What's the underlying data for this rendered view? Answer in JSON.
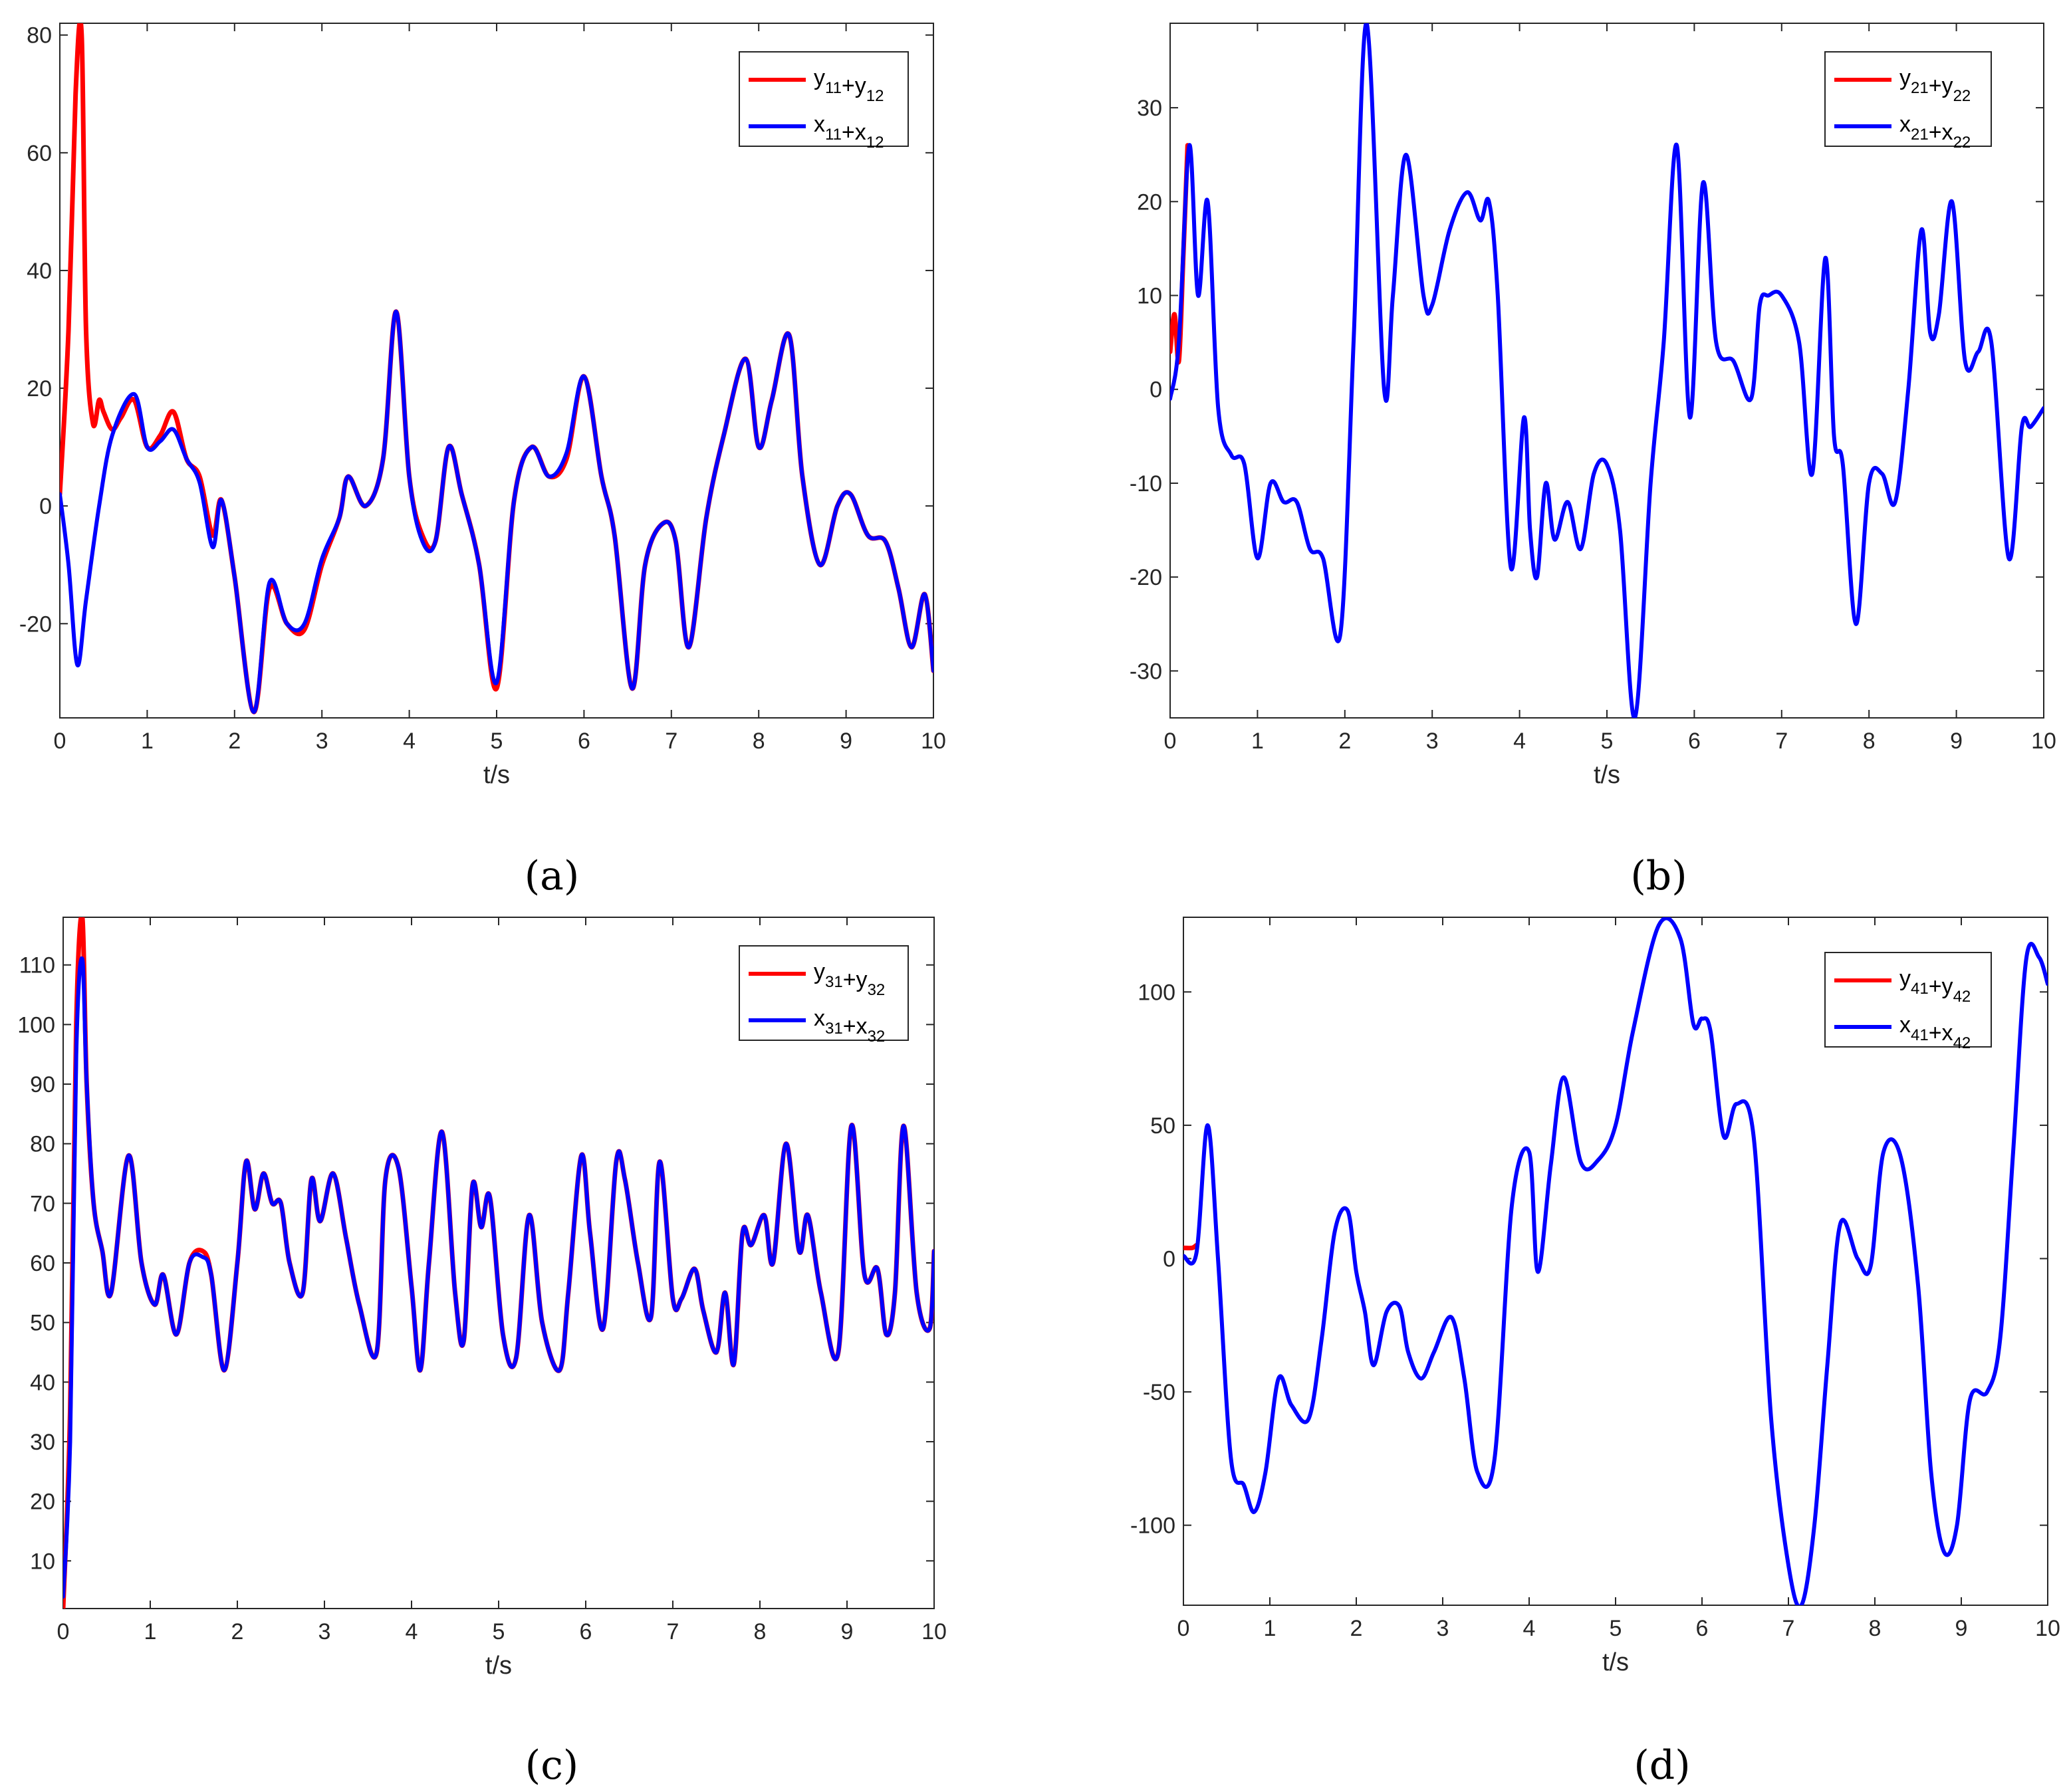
{
  "chart_data": [
    {
      "type": "line",
      "panel_label": "(a)",
      "xlabel": "t/s",
      "ylabel": "",
      "xlim": [
        0,
        10
      ],
      "ylim": [
        -36,
        82
      ],
      "xticks": [
        0,
        1,
        2,
        3,
        4,
        5,
        6,
        7,
        8,
        9,
        10
      ],
      "yticks": [
        -20,
        0,
        20,
        40,
        60,
        80
      ],
      "legend_position": "top-right",
      "series": [
        {
          "name": "y11+y12",
          "label_base": [
            "y",
            "+y"
          ],
          "label_sub": [
            "11",
            "12"
          ],
          "color": "#ff0000",
          "x": [
            0,
            0.1,
            0.18,
            0.25,
            0.3,
            0.38,
            0.45,
            0.5,
            0.6,
            0.7,
            0.85,
            1.0,
            1.15,
            1.3,
            1.45,
            1.6,
            1.75,
            1.85,
            2.0,
            2.22,
            2.4,
            2.6,
            2.8,
            3.0,
            3.2,
            3.3,
            3.5,
            3.7,
            3.85,
            4.0,
            4.15,
            4.3,
            4.45,
            4.6,
            4.8,
            5.0,
            5.2,
            5.4,
            5.6,
            5.8,
            6.0,
            6.2,
            6.35,
            6.55,
            6.7,
            6.9,
            7.05,
            7.2,
            7.4,
            7.6,
            7.85,
            8.0,
            8.15,
            8.35,
            8.5,
            8.7,
            8.9,
            9.05,
            9.25,
            9.45,
            9.6,
            9.75,
            9.9,
            10.0
          ],
          "y": [
            2,
            30,
            70,
            80,
            30,
            14,
            18,
            16,
            13,
            15,
            18,
            10,
            12,
            16,
            8,
            5,
            -5,
            1,
            -12,
            -35,
            -14,
            -20,
            -21,
            -10,
            -2,
            5,
            0,
            8,
            33,
            5,
            -5,
            -6,
            10,
            2,
            -10,
            -31,
            1,
            10,
            5,
            8,
            22,
            5,
            -5,
            -31,
            -10,
            -3,
            -6,
            -24,
            -2,
            12,
            25,
            10,
            18,
            29,
            5,
            -10,
            0,
            2,
            -5,
            -6,
            -14,
            -24,
            -15,
            -28
          ]
        },
        {
          "name": "x11+x12",
          "label_base": [
            "x",
            "+x"
          ],
          "label_sub": [
            "11",
            "12"
          ],
          "color": "#0000ff",
          "x": [
            0,
            0.1,
            0.2,
            0.3,
            0.45,
            0.6,
            0.85,
            1.0,
            1.15,
            1.3,
            1.45,
            1.6,
            1.75,
            1.85,
            2.0,
            2.22,
            2.4,
            2.6,
            2.8,
            3.0,
            3.2,
            3.3,
            3.5,
            3.7,
            3.85,
            4.0,
            4.15,
            4.3,
            4.45,
            4.6,
            4.8,
            5.0,
            5.2,
            5.4,
            5.6,
            5.8,
            6.0,
            6.2,
            6.35,
            6.55,
            6.7,
            6.9,
            7.05,
            7.2,
            7.4,
            7.6,
            7.85,
            8.0,
            8.15,
            8.35,
            8.5,
            8.7,
            8.9,
            9.05,
            9.25,
            9.45,
            9.6,
            9.75,
            9.9,
            10.0
          ],
          "y": [
            2,
            -10,
            -27,
            -16,
            0,
            12,
            19,
            10,
            11,
            13,
            8,
            4,
            -7,
            1,
            -12,
            -35,
            -13,
            -20,
            -20,
            -9,
            -2,
            5,
            0,
            8,
            33,
            5,
            -6,
            -6,
            10,
            2,
            -10,
            -30,
            1,
            10,
            5,
            9,
            22,
            5,
            -5,
            -31,
            -10,
            -3,
            -6,
            -24,
            -2,
            12,
            25,
            10,
            18,
            29,
            5,
            -10,
            0,
            2,
            -5,
            -6,
            -14,
            -24,
            -15,
            -28
          ]
        }
      ]
    },
    {
      "type": "line",
      "panel_label": "(b)",
      "xlabel": "t/s",
      "ylabel": "",
      "xlim": [
        0,
        10
      ],
      "ylim": [
        -35,
        39
      ],
      "xticks": [
        0,
        1,
        2,
        3,
        4,
        5,
        6,
        7,
        8,
        9,
        10
      ],
      "yticks": [
        -30,
        -20,
        -10,
        0,
        10,
        20,
        30
      ],
      "legend_position": "top-right",
      "series": [
        {
          "name": "y21+y22",
          "label_base": [
            "y",
            "+y"
          ],
          "label_sub": [
            "21",
            "22"
          ],
          "color": "#ff0000",
          "x": [
            0,
            0.05,
            0.1,
            0.15,
            0.2
          ],
          "y": [
            4,
            8,
            3,
            14,
            26
          ]
        },
        {
          "name": "x21+x22",
          "label_base": [
            "x",
            "+x"
          ],
          "label_sub": [
            "21",
            "22"
          ],
          "color": "#0000ff",
          "x": [
            0,
            0.1,
            0.22,
            0.32,
            0.43,
            0.55,
            0.7,
            0.85,
            1.0,
            1.15,
            1.3,
            1.45,
            1.6,
            1.75,
            1.95,
            2.1,
            2.25,
            2.45,
            2.55,
            2.7,
            2.9,
            3.0,
            3.2,
            3.4,
            3.55,
            3.65,
            3.75,
            3.9,
            4.05,
            4.12,
            4.2,
            4.3,
            4.4,
            4.55,
            4.7,
            4.85,
            5.0,
            5.15,
            5.32,
            5.5,
            5.65,
            5.8,
            5.95,
            6.1,
            6.25,
            6.45,
            6.65,
            6.75,
            6.85,
            7.0,
            7.2,
            7.35,
            7.5,
            7.6,
            7.7,
            7.85,
            8.0,
            8.15,
            8.3,
            8.45,
            8.6,
            8.7,
            8.8,
            8.95,
            9.1,
            9.25,
            9.4,
            9.6,
            9.75,
            9.85,
            10.0
          ],
          "y": [
            -1,
            5,
            26,
            10,
            20,
            -2,
            -7,
            -8,
            -18,
            -10,
            -12,
            -12,
            -17,
            -18,
            -26,
            5,
            39,
            0,
            10,
            25,
            10,
            9,
            17,
            21,
            18,
            20,
            10,
            -19,
            -3,
            -15,
            -20,
            -10,
            -16,
            -12,
            -17,
            -9,
            -8,
            -15,
            -35,
            -10,
            5,
            26,
            -3,
            22,
            5,
            3,
            -1,
            9,
            10,
            10,
            5,
            -9,
            14,
            -5,
            -8,
            -25,
            -10,
            -9,
            -12,
            0,
            17,
            6,
            8,
            20,
            3,
            4,
            5,
            -18,
            -4,
            -4,
            -2
          ]
        }
      ]
    },
    {
      "type": "line",
      "panel_label": "(c)",
      "xlabel": "t/s",
      "ylabel": "",
      "xlim": [
        0,
        10
      ],
      "ylim": [
        2,
        118
      ],
      "xticks": [
        0,
        1,
        2,
        3,
        4,
        5,
        6,
        7,
        8,
        9,
        10
      ],
      "yticks": [
        10,
        20,
        30,
        40,
        50,
        60,
        70,
        80,
        90,
        100,
        110
      ],
      "legend_position": "top-right",
      "series": [
        {
          "name": "y31+y32",
          "label_base": [
            "y",
            "+y"
          ],
          "label_sub": [
            "31",
            "32"
          ],
          "color": "#ff0000",
          "x": [
            0,
            0.08,
            0.15,
            0.22,
            0.27,
            0.35,
            0.45,
            0.55,
            0.75,
            0.9,
            1.05,
            1.15,
            1.3,
            1.45,
            1.6,
            1.7,
            1.85,
            2.0,
            2.1,
            2.2,
            2.3,
            2.4,
            2.5,
            2.6,
            2.75,
            2.85,
            2.95,
            3.1,
            3.25,
            3.4,
            3.6,
            3.7,
            3.85,
            4.0,
            4.1,
            4.2,
            4.35,
            4.5,
            4.6,
            4.7,
            4.8,
            4.9,
            5.05,
            5.2,
            5.35,
            5.5,
            5.7,
            5.8,
            5.95,
            6.05,
            6.2,
            6.35,
            6.45,
            6.6,
            6.75,
            6.85,
            7.0,
            7.1,
            7.25,
            7.35,
            7.5,
            7.6,
            7.7,
            7.8,
            7.9,
            8.05,
            8.15,
            8.3,
            8.45,
            8.55,
            8.7,
            8.9,
            9.05,
            9.2,
            9.35,
            9.45,
            9.55,
            9.65,
            9.8,
            9.95,
            10.0
          ],
          "y": [
            2,
            35,
            100,
            118,
            90,
            70,
            62,
            55,
            78,
            60,
            53,
            58,
            48,
            60,
            62,
            58,
            42,
            60,
            77,
            69,
            75,
            70,
            70,
            60,
            55,
            74,
            67,
            75,
            64,
            53,
            45,
            74,
            76,
            56,
            42,
            60,
            82,
            55,
            47,
            73,
            66,
            71,
            48,
            44,
            68,
            50,
            42,
            55,
            78,
            65,
            49,
            77,
            74,
            60,
            51,
            77,
            54,
            54,
            59,
            52,
            45,
            55,
            43,
            65,
            63,
            68,
            60,
            80,
            62,
            68,
            55,
            45,
            83,
            58,
            59,
            48,
            55,
            83,
            55,
            49,
            62
          ]
        },
        {
          "name": "x31+x32",
          "label_base": [
            "x",
            "+x"
          ],
          "label_sub": [
            "31",
            "32"
          ],
          "color": "#0000ff",
          "x": [
            0,
            0.08,
            0.15,
            0.22,
            0.27,
            0.35,
            0.45,
            0.55,
            0.75,
            0.9,
            1.05,
            1.15,
            1.3,
            1.45,
            1.6,
            1.7,
            1.85,
            2.0,
            2.1,
            2.2,
            2.3,
            2.4,
            2.5,
            2.6,
            2.75,
            2.85,
            2.95,
            3.1,
            3.25,
            3.4,
            3.6,
            3.7,
            3.85,
            4.0,
            4.1,
            4.2,
            4.35,
            4.5,
            4.6,
            4.7,
            4.8,
            4.9,
            5.05,
            5.2,
            5.35,
            5.5,
            5.7,
            5.8,
            5.95,
            6.05,
            6.2,
            6.35,
            6.45,
            6.6,
            6.75,
            6.85,
            7.0,
            7.1,
            7.25,
            7.35,
            7.5,
            7.6,
            7.7,
            7.8,
            7.9,
            8.05,
            8.15,
            8.3,
            8.45,
            8.55,
            8.7,
            8.9,
            9.05,
            9.2,
            9.35,
            9.45,
            9.55,
            9.65,
            9.8,
            9.95,
            10.0
          ],
          "y": [
            4,
            30,
            95,
            111,
            90,
            70,
            62,
            55,
            78,
            60,
            53,
            58,
            48,
            60,
            61,
            58,
            42,
            60,
            77,
            69,
            75,
            70,
            70,
            60,
            55,
            74,
            67,
            75,
            64,
            53,
            45,
            74,
            76,
            56,
            42,
            60,
            82,
            55,
            47,
            73,
            66,
            71,
            48,
            44,
            68,
            50,
            42,
            55,
            78,
            65,
            49,
            77,
            74,
            60,
            51,
            77,
            54,
            54,
            59,
            52,
            45,
            55,
            43,
            65,
            63,
            68,
            60,
            80,
            62,
            68,
            55,
            45,
            83,
            58,
            59,
            48,
            55,
            83,
            55,
            49,
            62
          ]
        }
      ]
    },
    {
      "type": "line",
      "panel_label": "(d)",
      "xlabel": "t/s",
      "ylabel": "",
      "xlim": [
        0,
        10
      ],
      "ylim": [
        -130,
        128
      ],
      "xticks": [
        0,
        1,
        2,
        3,
        4,
        5,
        6,
        7,
        8,
        9,
        10
      ],
      "yticks": [
        -100,
        -50,
        0,
        50,
        100
      ],
      "legend_position": "top-right",
      "series": [
        {
          "name": "y41+y42",
          "label_base": [
            "y",
            "+y"
          ],
          "label_sub": [
            "41",
            "42"
          ],
          "color": "#ff0000",
          "x": [
            0,
            0.1,
            0.15
          ],
          "y": [
            4,
            4,
            5
          ]
        },
        {
          "name": "x41+x42",
          "label_base": [
            "x",
            "+x"
          ],
          "label_sub": [
            "41",
            "42"
          ],
          "color": "#0000ff",
          "x": [
            0,
            0.15,
            0.28,
            0.4,
            0.55,
            0.7,
            0.82,
            0.95,
            1.1,
            1.25,
            1.45,
            1.6,
            1.75,
            1.9,
            2.0,
            2.1,
            2.2,
            2.35,
            2.5,
            2.6,
            2.75,
            2.9,
            3.1,
            3.25,
            3.4,
            3.6,
            3.8,
            4.0,
            4.1,
            4.25,
            4.4,
            4.6,
            4.8,
            5.0,
            5.2,
            5.5,
            5.75,
            5.9,
            6.0,
            6.1,
            6.25,
            6.4,
            6.6,
            6.8,
            7.0,
            7.15,
            7.3,
            7.45,
            7.6,
            7.8,
            7.95,
            8.1,
            8.3,
            8.5,
            8.65,
            8.8,
            8.95,
            9.1,
            9.3,
            9.45,
            9.6,
            9.75,
            9.9,
            10.0
          ],
          "y": [
            1,
            2,
            50,
            0,
            -75,
            -85,
            -95,
            -80,
            -45,
            -55,
            -60,
            -30,
            10,
            18,
            -5,
            -20,
            -40,
            -20,
            -18,
            -35,
            -45,
            -35,
            -22,
            -45,
            -80,
            -75,
            20,
            40,
            -5,
            35,
            68,
            36,
            37,
            50,
            85,
            125,
            120,
            88,
            90,
            85,
            46,
            58,
            45,
            -60,
            -115,
            -130,
            -100,
            -40,
            13,
            0,
            -3,
            40,
            38,
            -10,
            -80,
            -110,
            -100,
            -53,
            -50,
            -30,
            40,
            112,
            113,
            103
          ]
        }
      ]
    }
  ]
}
